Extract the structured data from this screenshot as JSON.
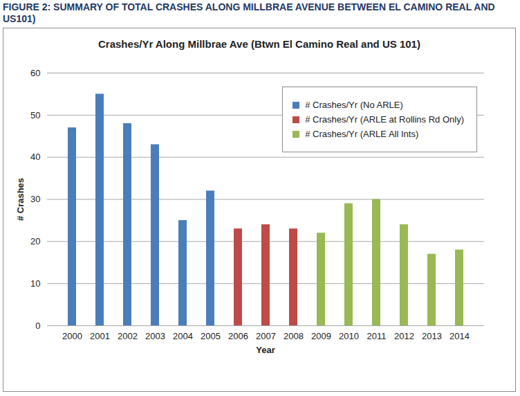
{
  "chart_data": {
    "type": "bar",
    "caption": "FIGURE 2: SUMMARY OF TOTAL CRASHES ALONG MILLBRAE AVENUE BETWEEN EL CAMINO REAL AND US101)",
    "title": "Crashes/Yr Along Millbrae Ave (Btwn El Camino Real and US 101)",
    "x_label": "Year",
    "y_label": "# Crashes",
    "categories": [
      "2000",
      "2001",
      "2002",
      "2003",
      "2004",
      "2005",
      "2006",
      "2007",
      "2008",
      "2009",
      "2010",
      "2011",
      "2012",
      "2013",
      "2014"
    ],
    "series": [
      {
        "name": "# Crashes/Yr (No ARLE)",
        "color": "#4a7ebb",
        "values": [
          47,
          55,
          48,
          43,
          25,
          32,
          null,
          null,
          null,
          null,
          null,
          null,
          null,
          null,
          null
        ]
      },
      {
        "name": "# Crashes/Yr (ARLE at Rollins Rd Only)",
        "color": "#be4b48",
        "values": [
          null,
          null,
          null,
          null,
          null,
          null,
          23,
          24,
          23,
          null,
          null,
          null,
          null,
          null,
          null
        ]
      },
      {
        "name": "# Crashes/Yr (ARLE All Ints)",
        "color": "#98b954",
        "values": [
          null,
          null,
          null,
          null,
          null,
          null,
          null,
          null,
          null,
          22,
          29,
          30,
          24,
          17,
          18
        ]
      }
    ],
    "ylim": [
      0,
      60
    ],
    "yticks": [
      0,
      10,
      20,
      30,
      40,
      50,
      60
    ],
    "grid": true,
    "legend": "top-right"
  }
}
